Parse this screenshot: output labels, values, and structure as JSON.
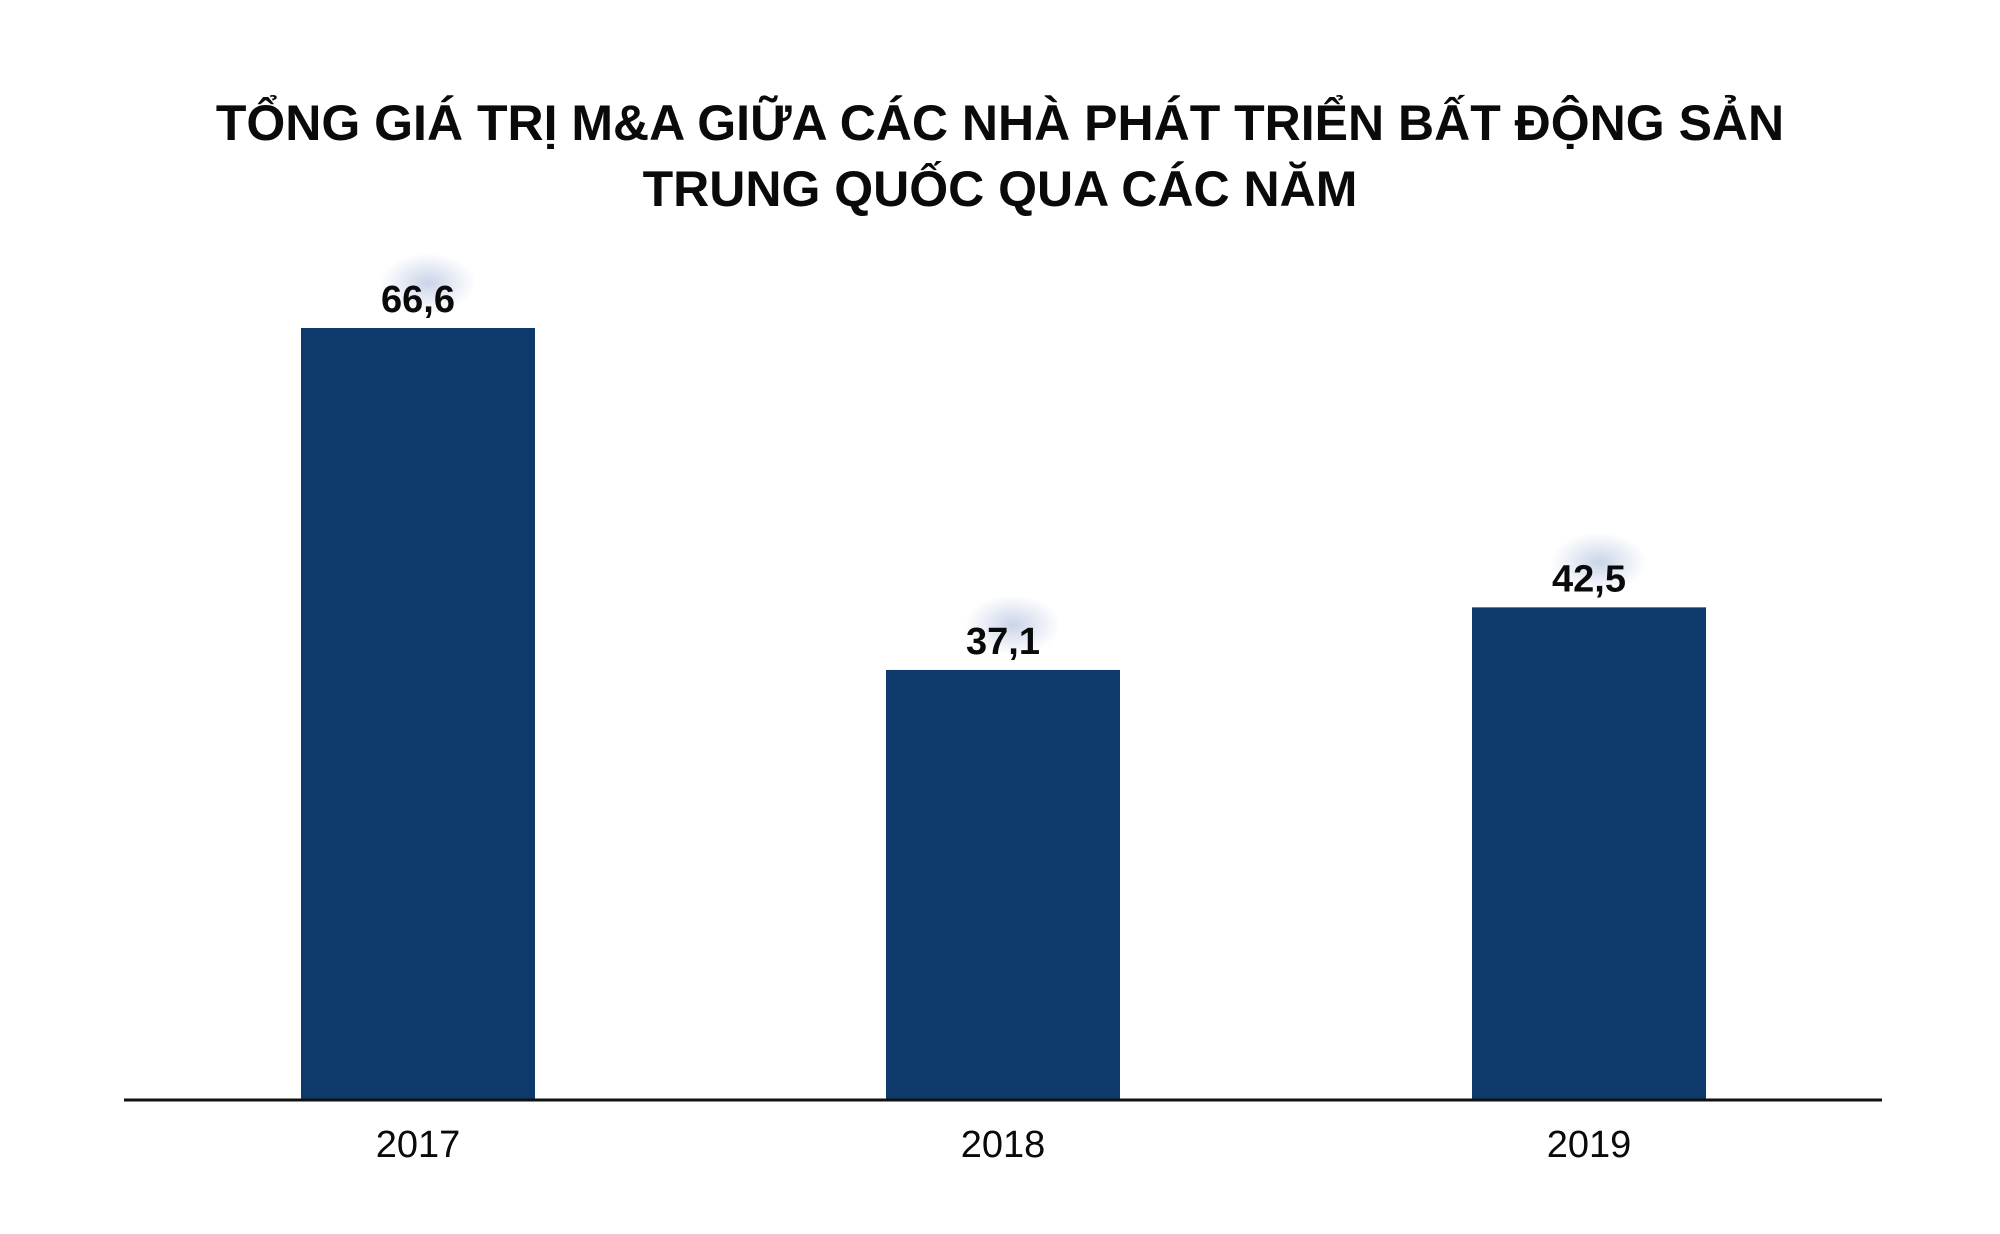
{
  "chart_data": {
    "type": "bar",
    "title_lines": [
      "TỔNG GIÁ TRỊ M&A GIỮA CÁC NHÀ PHÁT TRIỂN BẤT ĐỘNG SẢN",
      "TRUNG QUỐC QUA CÁC NĂM"
    ],
    "categories": [
      "2017",
      "2018",
      "2019"
    ],
    "values": [
      66.6,
      37.1,
      42.5
    ],
    "value_labels": [
      "66,6",
      "37,1",
      "42,5"
    ],
    "xlabel": "",
    "ylabel": "",
    "ylim": [
      0,
      66.6
    ],
    "grid": false,
    "legend": "none",
    "colors": {
      "bar": "#0d3a6b",
      "axis": "#111111",
      "text": "#0a0a0a"
    }
  }
}
